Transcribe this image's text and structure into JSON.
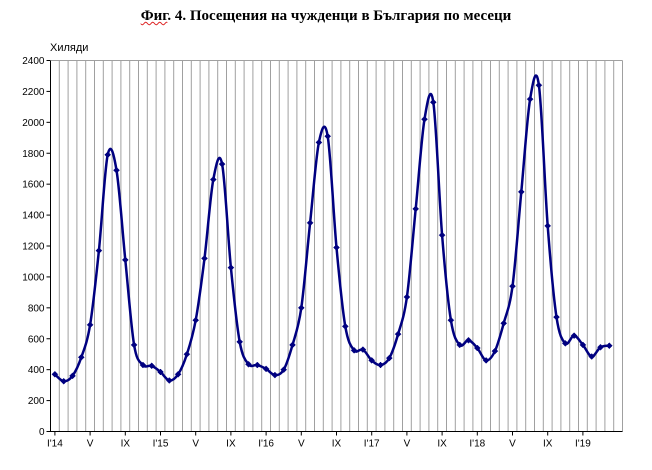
{
  "title": {
    "prefix": "Фиг",
    "rest": ". 4. Посещения на чужденци в България по месеци"
  },
  "chart_data": {
    "type": "line",
    "title": "Фиг. 4. Посещения на чужденци в България по месеци",
    "ylabel": "Хиляди",
    "xlabel": "",
    "ylim": [
      0,
      2400
    ],
    "yticks": [
      0,
      200,
      400,
      600,
      800,
      1000,
      1200,
      1400,
      1600,
      1800,
      2000,
      2200,
      2400
    ],
    "x_tick_labels": [
      "I'14",
      "V",
      "IX",
      "I'15",
      "V",
      "IX",
      "I'16",
      "V",
      "IX",
      "I'17",
      "V",
      "IX",
      "I'18",
      "V",
      "IX",
      "I'19"
    ],
    "grid": "vertical lines at every month",
    "legend": "none",
    "colors": {
      "line": "#000080",
      "grid": "#a0a0a0",
      "axis": "#000000"
    },
    "x": [
      "2014-01",
      "2014-02",
      "2014-03",
      "2014-04",
      "2014-05",
      "2014-06",
      "2014-07",
      "2014-08",
      "2014-09",
      "2014-10",
      "2014-11",
      "2014-12",
      "2015-01",
      "2015-02",
      "2015-03",
      "2015-04",
      "2015-05",
      "2015-06",
      "2015-07",
      "2015-08",
      "2015-09",
      "2015-10",
      "2015-11",
      "2015-12",
      "2016-01",
      "2016-02",
      "2016-03",
      "2016-04",
      "2016-05",
      "2016-06",
      "2016-07",
      "2016-08",
      "2016-09",
      "2016-10",
      "2016-11",
      "2016-12",
      "2017-01",
      "2017-02",
      "2017-03",
      "2017-04",
      "2017-05",
      "2017-06",
      "2017-07",
      "2017-08",
      "2017-09",
      "2017-10",
      "2017-11",
      "2017-12",
      "2018-01",
      "2018-02",
      "2018-03",
      "2018-04",
      "2018-05",
      "2018-06",
      "2018-07",
      "2018-08",
      "2018-09",
      "2018-10",
      "2018-11",
      "2018-12",
      "2019-01",
      "2019-02",
      "2019-03",
      "2019-04"
    ],
    "series": [
      {
        "values": [
          370,
          325,
          360,
          480,
          690,
          1170,
          1790,
          1690,
          1110,
          560,
          430,
          425,
          385,
          330,
          370,
          500,
          720,
          1120,
          1630,
          1730,
          1060,
          580,
          435,
          430,
          405,
          365,
          400,
          560,
          800,
          1350,
          1870,
          1910,
          1190,
          680,
          525,
          530,
          460,
          430,
          475,
          630,
          870,
          1440,
          2020,
          2130,
          1270,
          720,
          560,
          590,
          540,
          460,
          520,
          700,
          940,
          1550,
          2150,
          2240,
          1330,
          740,
          570,
          620,
          560,
          485,
          545,
          555
        ]
      }
    ]
  }
}
